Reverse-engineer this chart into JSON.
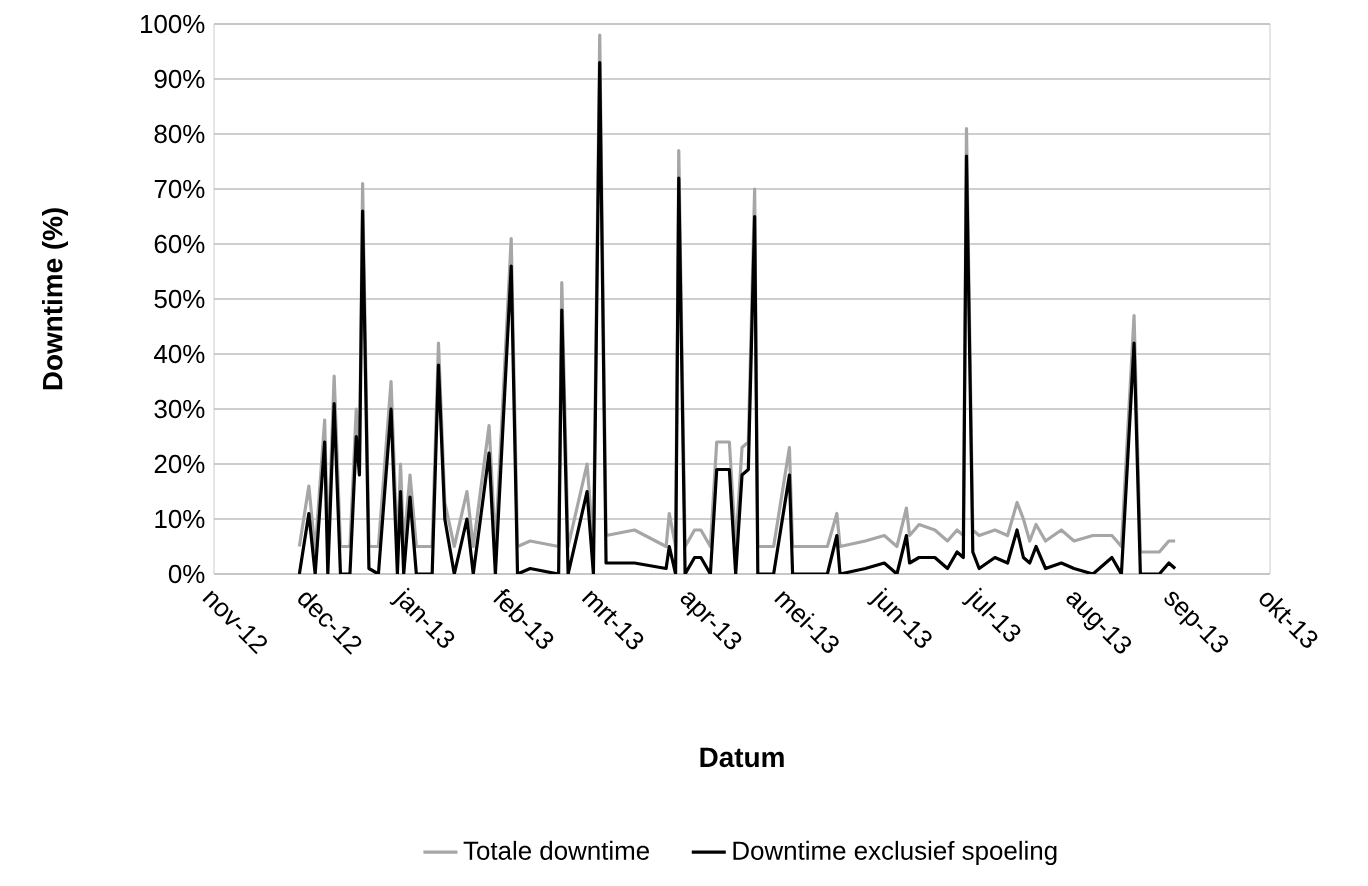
{
  "chart_data": {
    "type": "line",
    "xlabel": "Datum",
    "ylabel": "Downtime (%)",
    "x": [
      "2012-11-28",
      "2012-12-01",
      "2012-12-03",
      "2012-12-06",
      "2012-12-07",
      "2012-12-09",
      "2012-12-11",
      "2012-12-14",
      "2012-12-16",
      "2012-12-17",
      "2012-12-18",
      "2012-12-20",
      "2012-12-23",
      "2012-12-27",
      "2012-12-29",
      "2012-12-30",
      "2012-12-31",
      "2013-01-02",
      "2013-01-04",
      "2013-01-09",
      "2013-01-11",
      "2013-01-13",
      "2013-01-16",
      "2013-01-20",
      "2013-01-22",
      "2013-01-27",
      "2013-01-29",
      "2013-02-03",
      "2013-02-05",
      "2013-02-09",
      "2013-02-18",
      "2013-02-19",
      "2013-02-21",
      "2013-02-27",
      "2013-03-01",
      "2013-03-03",
      "2013-03-05",
      "2013-03-14",
      "2013-03-24",
      "2013-03-25",
      "2013-03-27",
      "2013-03-28",
      "2013-03-30",
      "2013-04-02",
      "2013-04-04",
      "2013-04-07",
      "2013-04-09",
      "2013-04-13",
      "2013-04-15",
      "2013-04-17",
      "2013-04-19",
      "2013-04-21",
      "2013-04-22",
      "2013-04-27",
      "2013-05-02",
      "2013-05-03",
      "2013-05-14",
      "2013-05-17",
      "2013-05-18",
      "2013-05-26",
      "2013-06-01",
      "2013-06-05",
      "2013-06-08",
      "2013-06-09",
      "2013-06-12",
      "2013-06-17",
      "2013-06-21",
      "2013-06-24",
      "2013-06-26",
      "2013-06-27",
      "2013-06-29",
      "2013-07-01",
      "2013-07-06",
      "2013-07-10",
      "2013-07-13",
      "2013-07-15",
      "2013-07-17",
      "2013-07-19",
      "2013-07-22",
      "2013-07-27",
      "2013-07-31",
      "2013-08-06",
      "2013-08-12",
      "2013-08-15",
      "2013-08-19",
      "2013-08-21",
      "2013-08-27",
      "2013-08-30",
      "2013-09-01"
    ],
    "series": [
      {
        "name": "Totale downtime",
        "color": "#a6a6a6",
        "values": [
          5,
          16,
          4,
          28,
          4,
          36,
          5,
          5,
          30,
          20,
          71,
          5,
          5,
          35,
          4,
          20,
          5,
          18,
          5,
          5,
          42,
          13,
          5,
          15,
          5,
          27,
          5,
          61,
          5,
          6,
          5,
          53,
          5,
          20,
          5,
          98,
          7,
          8,
          5,
          11,
          5,
          77,
          5,
          8,
          8,
          5,
          24,
          24,
          5,
          23,
          24,
          70,
          5,
          5,
          23,
          5,
          5,
          11,
          5,
          6,
          7,
          5,
          12,
          7,
          9,
          8,
          6,
          8,
          7,
          81,
          8,
          7,
          8,
          7,
          13,
          10,
          6,
          9,
          6,
          8,
          6,
          7,
          7,
          5,
          47,
          4,
          4,
          6,
          6
        ]
      },
      {
        "name": "Downtime exclusief spoeling",
        "color": "#000000",
        "values": [
          0,
          11,
          0,
          24,
          0,
          31,
          0,
          0,
          25,
          18,
          66,
          1,
          0,
          30,
          0,
          15,
          0,
          14,
          0,
          0,
          38,
          10,
          0,
          10,
          0,
          22,
          0,
          56,
          0,
          1,
          0,
          48,
          0,
          15,
          0,
          93,
          2,
          2,
          1,
          5,
          0,
          72,
          0,
          3,
          3,
          0,
          19,
          19,
          0,
          18,
          19,
          65,
          0,
          0,
          18,
          0,
          0,
          7,
          0,
          1,
          2,
          0,
          7,
          2,
          3,
          3,
          1,
          4,
          3,
          76,
          4,
          1,
          3,
          2,
          8,
          3,
          2,
          5,
          1,
          2,
          1,
          0,
          3,
          0,
          42,
          0,
          0,
          2,
          1
        ]
      }
    ],
    "xlim": [
      "2012-11-01",
      "2013-10-01"
    ],
    "xticks": [
      {
        "value": "2012-11-01",
        "label": "nov-12"
      },
      {
        "value": "2012-12-01",
        "label": "dec-12"
      },
      {
        "value": "2013-01-01",
        "label": "jan-13"
      },
      {
        "value": "2013-02-01",
        "label": "feb-13"
      },
      {
        "value": "2013-03-01",
        "label": "mrt-13"
      },
      {
        "value": "2013-04-01",
        "label": "apr-13"
      },
      {
        "value": "2013-05-01",
        "label": "mei-13"
      },
      {
        "value": "2013-06-01",
        "label": "jun-13"
      },
      {
        "value": "2013-07-01",
        "label": "jul-13"
      },
      {
        "value": "2013-08-01",
        "label": "aug-13"
      },
      {
        "value": "2013-09-01",
        "label": "sep-13"
      },
      {
        "value": "2013-10-01",
        "label": "okt-13"
      }
    ],
    "ylim": [
      0,
      100
    ],
    "yticks": [
      {
        "value": 0,
        "label": "0%"
      },
      {
        "value": 10,
        "label": "10%"
      },
      {
        "value": 20,
        "label": "20%"
      },
      {
        "value": 30,
        "label": "30%"
      },
      {
        "value": 40,
        "label": "40%"
      },
      {
        "value": 50,
        "label": "50%"
      },
      {
        "value": 60,
        "label": "60%"
      },
      {
        "value": 70,
        "label": "70%"
      },
      {
        "value": 80,
        "label": "80%"
      },
      {
        "value": 90,
        "label": "90%"
      },
      {
        "value": 100,
        "label": "100%"
      }
    ],
    "grid": "y",
    "legend": "bottom",
    "marker": "none",
    "line_style": "solid"
  }
}
